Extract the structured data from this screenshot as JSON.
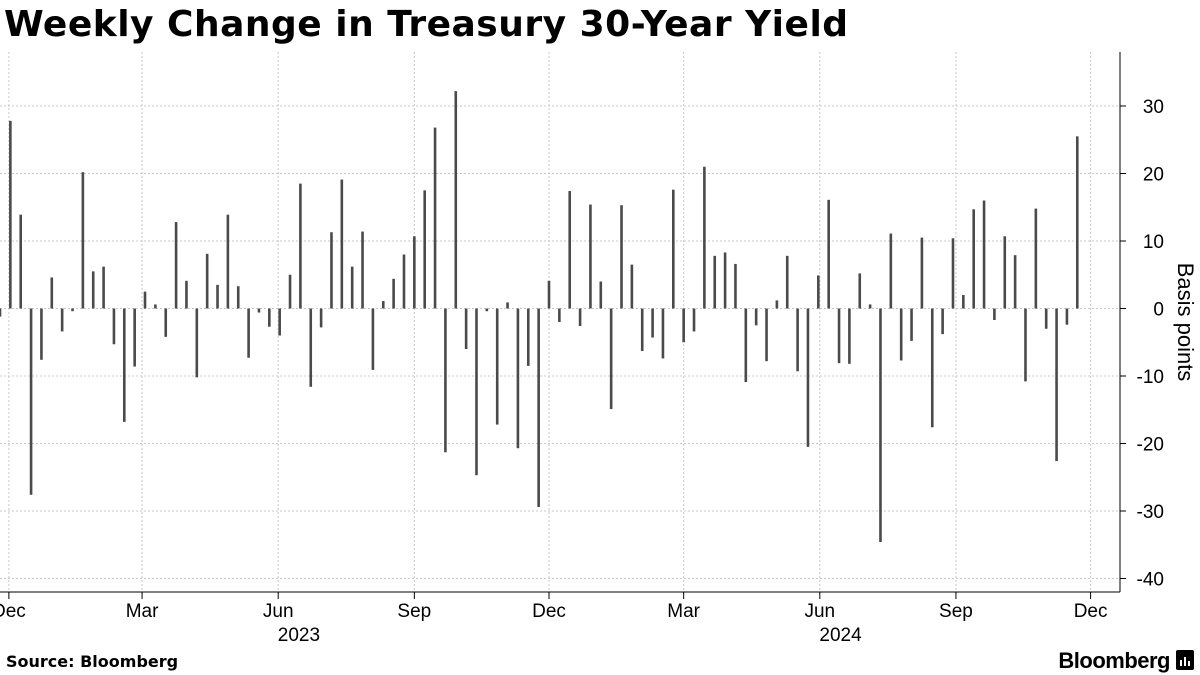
{
  "title": "Weekly Change in Treasury 30-Year Yield",
  "source": "Source: Bloomberg",
  "brand": "Bloomberg",
  "colors": {
    "bar": "#4a4a4a",
    "grid": "#c8c8c8",
    "axis": "#000000"
  },
  "chart_data": {
    "type": "bar",
    "ylabel": "Basis points",
    "ylim": [
      -42,
      38
    ],
    "yticks": [
      -40,
      -30,
      -20,
      -10,
      0,
      10,
      20,
      30
    ],
    "ytick_labels": [
      "-40",
      "-30",
      "-20",
      "-10",
      "0",
      "10",
      "20",
      "30"
    ],
    "x_start": "2022-11-25",
    "x_range": [
      "2022-11-25",
      "2024-12-06"
    ],
    "x_ticks": [
      {
        "date": "2022-12-01",
        "label": "Dec"
      },
      {
        "date": "2023-03-01",
        "label": "Mar"
      },
      {
        "date": "2023-06-01",
        "label": "Jun"
      },
      {
        "date": "2023-09-01",
        "label": "Sep"
      },
      {
        "date": "2023-12-01",
        "label": "Dec"
      },
      {
        "date": "2024-03-01",
        "label": "Mar"
      },
      {
        "date": "2024-06-01",
        "label": "Jun"
      },
      {
        "date": "2024-09-01",
        "label": "Sep"
      },
      {
        "date": "2024-12-01",
        "label": "Dec"
      }
    ],
    "year_labels": [
      {
        "date": "2023-06-15",
        "label": "2023"
      },
      {
        "date": "2024-06-15",
        "label": "2024"
      }
    ],
    "grid": true,
    "values": [
      -1.2,
      27.8,
      13.9,
      -27.6,
      -7.6,
      4.6,
      -3.4,
      -0.4,
      20.2,
      5.5,
      6.2,
      -5.3,
      -16.8,
      -8.6,
      2.5,
      0.6,
      -4.2,
      12.8,
      4.1,
      -10.2,
      8.1,
      3.5,
      13.9,
      3.3,
      -7.3,
      -0.6,
      -2.7,
      -4.0,
      5.0,
      18.5,
      -11.6,
      -2.8,
      11.3,
      19.1,
      6.2,
      11.4,
      -9.1,
      1.1,
      4.4,
      8.0,
      10.7,
      17.5,
      26.8,
      -21.3,
      32.2,
      -6.0,
      -24.7,
      -0.4,
      -17.2,
      0.9,
      -20.7,
      -8.5,
      -29.4,
      4.1,
      -2.0,
      17.4,
      -2.6,
      15.4,
      4.0,
      -14.9,
      15.3,
      6.5,
      -6.3,
      -4.3,
      -7.4,
      17.6,
      -5.0,
      -3.4,
      21.0,
      7.8,
      8.3,
      6.6,
      -10.9,
      -2.5,
      -7.8,
      1.2,
      7.8,
      -9.3,
      -20.5,
      4.9,
      16.1,
      -8.1,
      -8.2,
      5.2,
      0.6,
      -34.6,
      11.1,
      -7.7,
      -4.8,
      10.5,
      -17.6,
      -3.8,
      10.4,
      2.0,
      14.7,
      16.0,
      -1.7,
      10.7,
      7.9,
      -10.8,
      14.8,
      -3.0,
      -22.6,
      -2.4,
      25.5
    ]
  }
}
